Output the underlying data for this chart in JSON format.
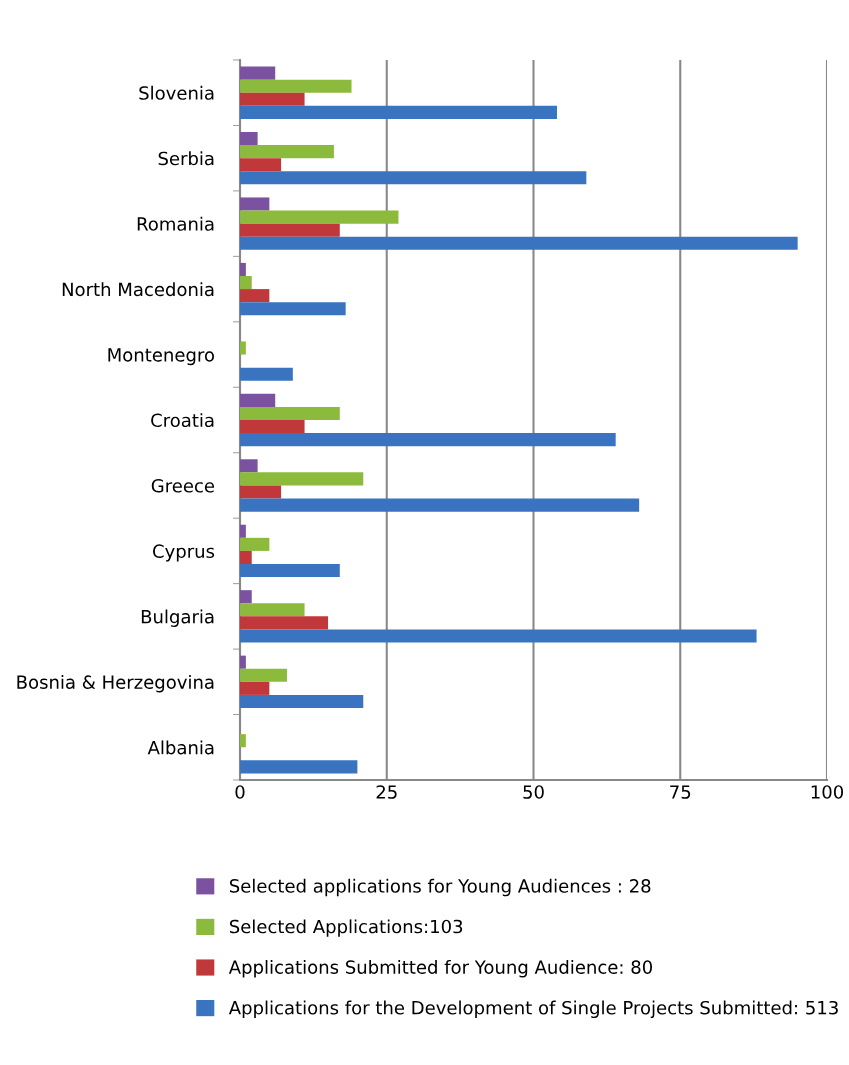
{
  "chart_data": {
    "type": "bar",
    "orientation": "horizontal",
    "categories": [
      "Slovenia",
      "Serbia",
      "Romania",
      "North Macedonia",
      "Montenegro",
      "Croatia",
      "Greece",
      "Cyprus",
      "Bulgaria",
      "Bosnia & Herzegovina",
      "Albania"
    ],
    "series": [
      {
        "name": "Selected applications for Young Audiences : 28",
        "color": "#7b52a0",
        "values": [
          6,
          3,
          5,
          1,
          0,
          6,
          3,
          1,
          2,
          1,
          0
        ]
      },
      {
        "name": "Selected Applications:103",
        "color": "#8cba3c",
        "values": [
          19,
          16,
          27,
          2,
          1,
          17,
          21,
          5,
          11,
          8,
          1
        ]
      },
      {
        "name": "Applications Submitted for Young Audience: 80",
        "color": "#c0383a",
        "values": [
          11,
          7,
          17,
          5,
          0,
          11,
          7,
          2,
          15,
          5,
          0
        ]
      },
      {
        "name": "Applications for the Development of Single Projects Submitted: 513",
        "color": "#3a74c0",
        "values": [
          54,
          59,
          95,
          18,
          9,
          64,
          68,
          17,
          88,
          21,
          20
        ]
      }
    ],
    "xlim": [
      0,
      100
    ],
    "xticks": [
      0,
      25,
      50,
      75,
      100
    ],
    "grid": "x",
    "legend": "bottom"
  }
}
